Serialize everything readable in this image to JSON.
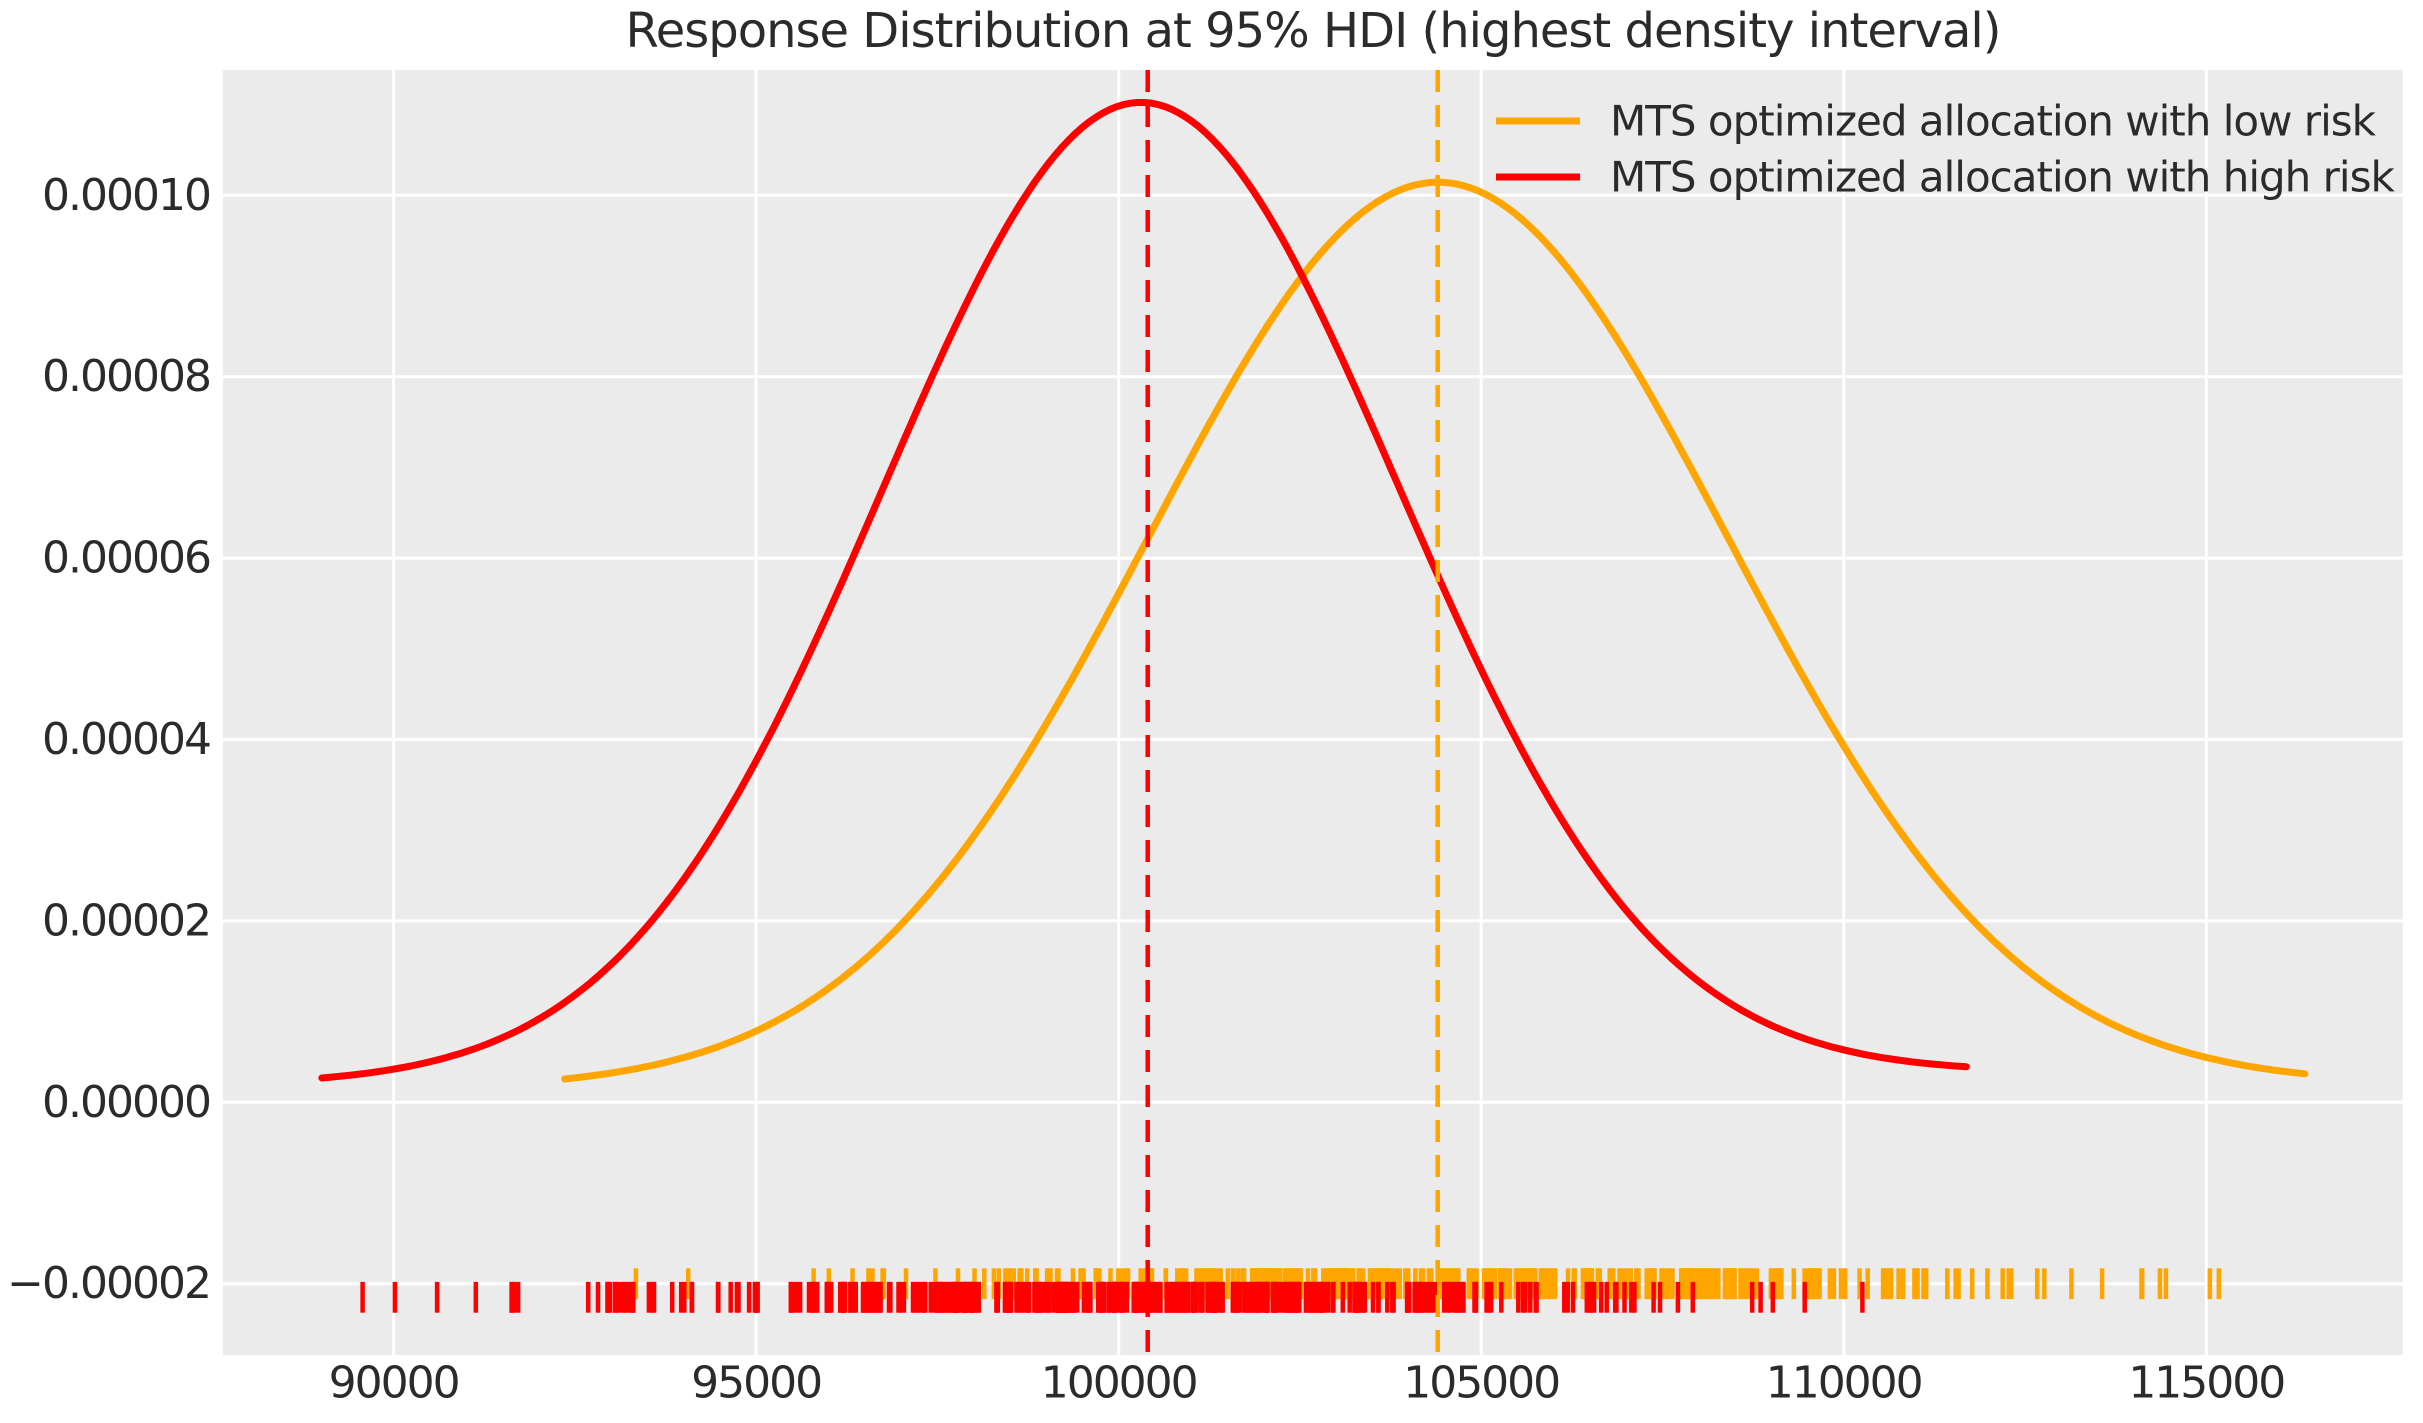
{
  "title": "Response Distribution at 95% HDI (highest density interval)",
  "colors": {
    "figure_background": "#ffffff",
    "plot_background": "#ebebeb",
    "grid": "#ffffff",
    "text": "#2b2b2b",
    "low_risk_orange": "#ffa500",
    "high_risk_red": "#ff0000"
  },
  "axes": {
    "xlim": [
      87647,
      117709
    ],
    "ylim": [
      -2.786e-05,
      0.00011382
    ],
    "x_ticks": [
      90000,
      95000,
      100000,
      105000,
      110000,
      115000
    ],
    "x_tick_labels": [
      "90000",
      "95000",
      "100000",
      "105000",
      "110000",
      "115000"
    ],
    "y_ticks": [
      0.0001,
      8e-05,
      6e-05,
      4e-05,
      2e-05,
      0.0,
      -2e-05
    ],
    "y_tick_labels": [
      "0.00010",
      "0.00008",
      "0.00006",
      "0.00004",
      "0.00002",
      "0.00000",
      "−0.00002"
    ]
  },
  "chart_data": {
    "type": "kde",
    "title": "Response Distribution at 95% HDI (highest density interval)",
    "xlabel": "",
    "ylabel": "",
    "grid": true,
    "legend_position": "upper right",
    "xlim": [
      87647,
      117709
    ],
    "ylim": [
      -2.786e-05,
      0.00011382
    ],
    "series": [
      {
        "label": "MTS optimized allocation with low risk",
        "color": "#ffa500",
        "kde": {
          "mean": 104400,
          "sigma": 4000,
          "peak_density": 9.97e-05,
          "range": [
            92360,
            116360
          ],
          "tail_floor": [
            1.5e-06,
            2e-06
          ]
        },
        "mean_line_x": 104400,
        "rug": {
          "seed": 11,
          "n": 380,
          "components": [
            {
              "w": 0.93,
              "mean": 104400,
              "sigma": 3600
            },
            {
              "w": 0.07,
              "mean": 109600,
              "sigma": 3000
            }
          ],
          "clip": [
            92360,
            116360
          ],
          "center_density": -2e-05,
          "tick_height_density": 3.4e-06
        }
      },
      {
        "label": "MTS optimized allocation with high risk",
        "color": "#ff0000",
        "kde": {
          "mean": 100300,
          "sigma": 3550,
          "peak_density": 0.0001076,
          "range": [
            89010,
            111690
          ],
          "tail_floor": [
            2e-06,
            3.3e-06
          ]
        },
        "mean_line_x": 100400,
        "rug": {
          "seed": 5,
          "n": 420,
          "components": [
            {
              "w": 0.94,
              "mean": 100300,
              "sigma": 3400
            },
            {
              "w": 0.06,
              "mean": 93800,
              "sigma": 2600
            }
          ],
          "clip": [
            88950,
            111690
          ],
          "center_density": -2.15e-05,
          "tick_height_density": 3.4e-06
        }
      }
    ]
  }
}
